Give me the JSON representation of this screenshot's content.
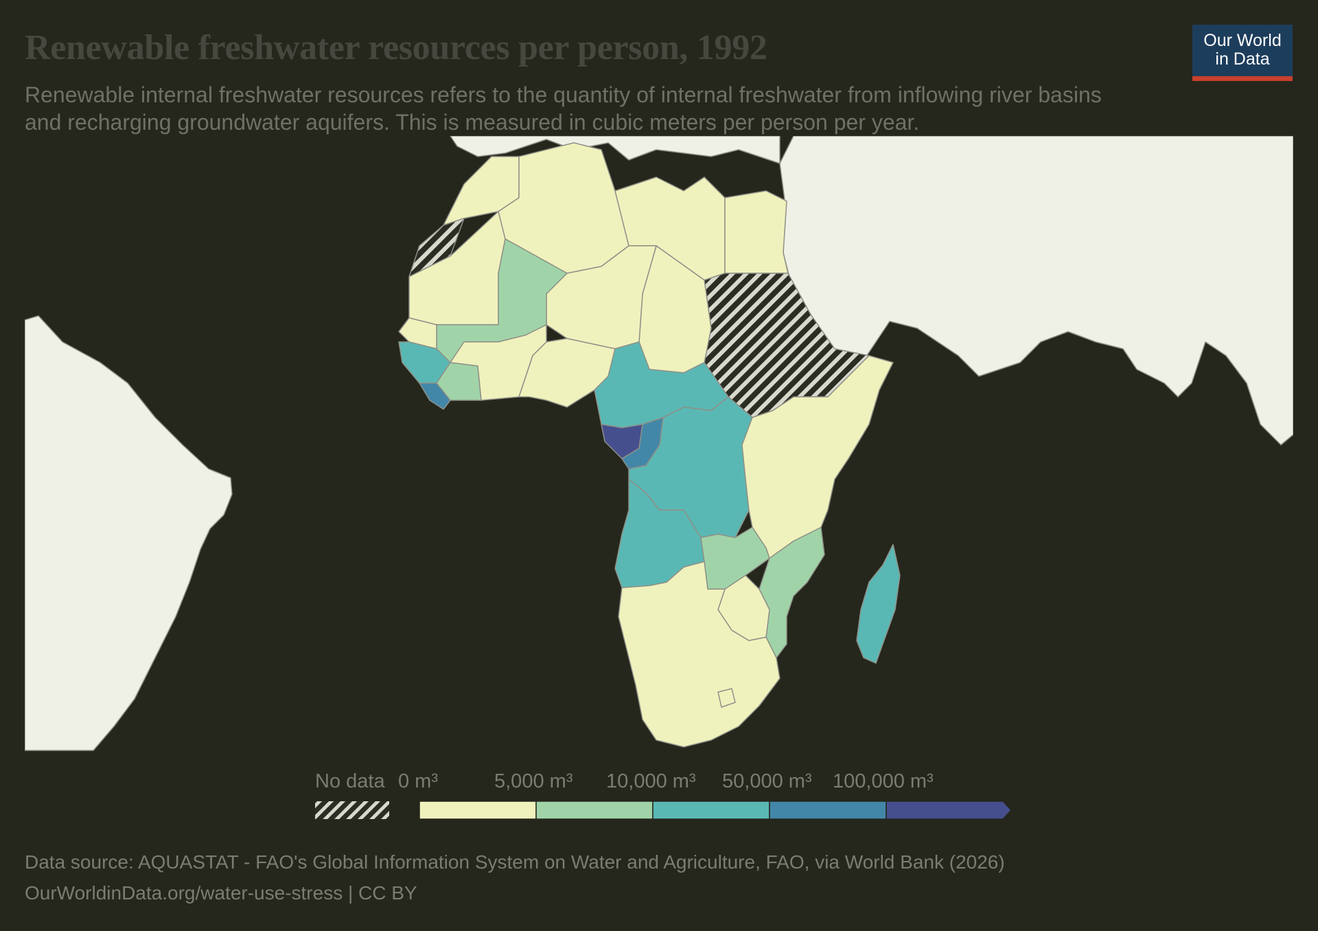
{
  "header": {
    "title": "Renewable freshwater resources per person, 1992",
    "subtitle": "Renewable internal freshwater resources refers to the quantity of internal freshwater from inflowing river basins and recharging groundwater aquifers. This is measured in cubic meters per person per year."
  },
  "logo": {
    "line1": "Our World",
    "line2": "in Data"
  },
  "legend": {
    "no_data_label": "No data",
    "bins": [
      {
        "label": "0 m³",
        "color": "#f0f2bd"
      },
      {
        "label": "5,000 m³",
        "color": "#a0d4a8"
      },
      {
        "label": "10,000 m³",
        "color": "#5ab8b4"
      },
      {
        "label": "50,000 m³",
        "color": "#4387a8"
      },
      {
        "label": "100,000 m³",
        "color": "#464f8e"
      }
    ]
  },
  "colors": {
    "background": "#25271d",
    "land_other": "#f0f1e6",
    "border": "#8f9088",
    "no_data_hatch": "#d8d8cc"
  },
  "footer": {
    "source": "Data source: AQUASTAT - FAO's Global Information System on Water and Agriculture, FAO, via World Bank (2026)",
    "url": "OurWorldinData.org/water-use-stress | CC BY"
  }
}
